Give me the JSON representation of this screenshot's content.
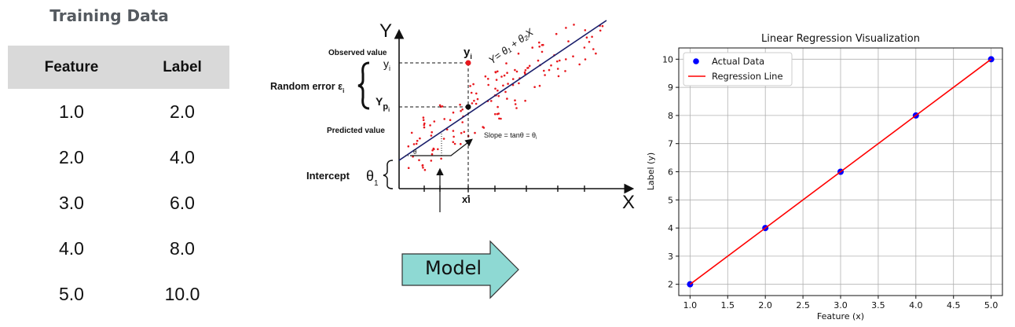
{
  "table": {
    "title": "Training Data",
    "headers": [
      "Feature",
      "Label"
    ],
    "rows": [
      [
        "1.0",
        "2.0"
      ],
      [
        "2.0",
        "4.0"
      ],
      [
        "3.0",
        "6.0"
      ],
      [
        "4.0",
        "8.0"
      ],
      [
        "5.0",
        "10.0"
      ]
    ]
  },
  "diagram": {
    "y_axis": "Y",
    "x_axis": "X",
    "equation": "Y= θ₁ + θ₂X",
    "observed_label": "Observed value",
    "observed_symbol": "y",
    "observed_sub": "i",
    "observed_point_symbol": "y",
    "observed_point_sub": "i",
    "random_error": "Random error ε",
    "random_error_sub": "i",
    "predicted_symbol": "Y",
    "predicted_sub": "p",
    "predicted_subsub": "i",
    "predicted_label": "Predicted value",
    "slope": "Slope = tanθ = θ",
    "slope_sub": "i",
    "theta": "θ",
    "intercept": "Intercept",
    "intercept_symbol": "θ",
    "intercept_sub": "1",
    "xi": "xi",
    "point_color": "#e8181e",
    "line_color": "#1a1f6b"
  },
  "model": {
    "label": "Model",
    "color": "#8ed9d3"
  },
  "chart_data": {
    "type": "scatter",
    "title": "Linear Regression Visualization",
    "xlabel": "Feature (x)",
    "ylabel": "Label (y)",
    "xlim": [
      0.85,
      5.15
    ],
    "ylim": [
      1.6,
      10.4
    ],
    "xticks": [
      1.0,
      1.5,
      2.0,
      2.5,
      3.0,
      3.5,
      4.0,
      4.5,
      5.0
    ],
    "xtick_labels": [
      "1.0",
      "1.5",
      "2.0",
      "2.5",
      "3.0",
      "3.5",
      "4.0",
      "4.5",
      "5.0"
    ],
    "yticks": [
      2,
      3,
      4,
      5,
      6,
      7,
      8,
      9,
      10
    ],
    "ytick_labels": [
      "2",
      "3",
      "4",
      "5",
      "6",
      "7",
      "8",
      "9",
      "10"
    ],
    "grid": true,
    "legend_position": "top-left",
    "series": [
      {
        "name": "Actual Data",
        "kind": "scatter",
        "color": "#0000ff",
        "x": [
          1,
          2,
          3,
          4,
          5
        ],
        "y": [
          2,
          4,
          6,
          8,
          10
        ]
      },
      {
        "name": "Regression Line",
        "kind": "line",
        "color": "#ff0000",
        "x": [
          1,
          2,
          3,
          4,
          5
        ],
        "y": [
          2,
          4,
          6,
          8,
          10
        ]
      }
    ]
  }
}
